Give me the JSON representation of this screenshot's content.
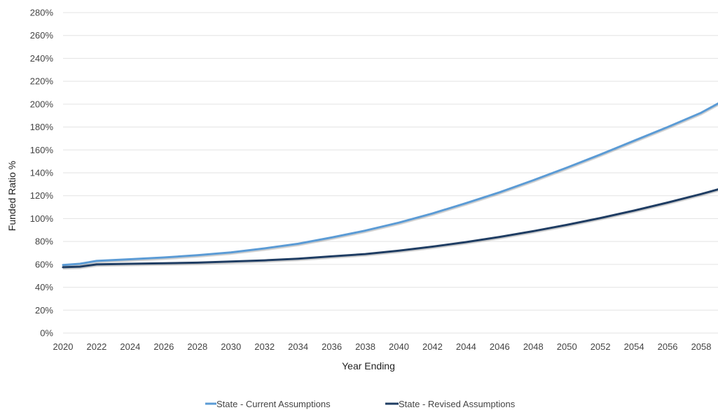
{
  "chart_data": {
    "type": "line",
    "title": "",
    "xlabel": "Year Ending",
    "ylabel": "Funded Ratio %",
    "xlim": [
      2020,
      2059
    ],
    "ylim": [
      0,
      280
    ],
    "x_ticks": [
      2020,
      2022,
      2024,
      2026,
      2028,
      2030,
      2032,
      2034,
      2036,
      2038,
      2040,
      2042,
      2044,
      2046,
      2048,
      2050,
      2052,
      2054,
      2056,
      2058
    ],
    "y_ticks": [
      0,
      20,
      40,
      60,
      80,
      100,
      120,
      140,
      160,
      180,
      200,
      220,
      240,
      260,
      280
    ],
    "y_tick_labels": [
      "0%",
      "20%",
      "40%",
      "60%",
      "80%",
      "100%",
      "120%",
      "140%",
      "160%",
      "180%",
      "200%",
      "220%",
      "240%",
      "260%",
      "280%"
    ],
    "grid": true,
    "legend_position": "bottom-center",
    "series": [
      {
        "name": "State - Current Assumptions",
        "color": "#5b9bd5",
        "x": [
          2020,
          2021,
          2022,
          2024,
          2026,
          2028,
          2030,
          2032,
          2034,
          2036,
          2038,
          2040,
          2042,
          2044,
          2046,
          2048,
          2050,
          2052,
          2054,
          2056,
          2058,
          2059
        ],
        "values": [
          59.5,
          60.5,
          63,
          64.5,
          66,
          68,
          70.5,
          74,
          78,
          83.5,
          89.5,
          96.5,
          104.5,
          113.5,
          123,
          133.5,
          144.5,
          156,
          168,
          180,
          192.5,
          200.5
        ]
      },
      {
        "name": "State - Revised Assumptions",
        "color": "#1f3d63",
        "x": [
          2020,
          2021,
          2022,
          2024,
          2026,
          2028,
          2030,
          2032,
          2034,
          2036,
          2038,
          2040,
          2042,
          2044,
          2046,
          2048,
          2050,
          2052,
          2054,
          2056,
          2058,
          2059
        ],
        "values": [
          57.5,
          58,
          60,
          60.5,
          61,
          61.5,
          62.5,
          63.5,
          65,
          67,
          69,
          72,
          75.5,
          79.5,
          84,
          89,
          94.5,
          100.5,
          107,
          114,
          121.5,
          125.5
        ]
      }
    ]
  }
}
